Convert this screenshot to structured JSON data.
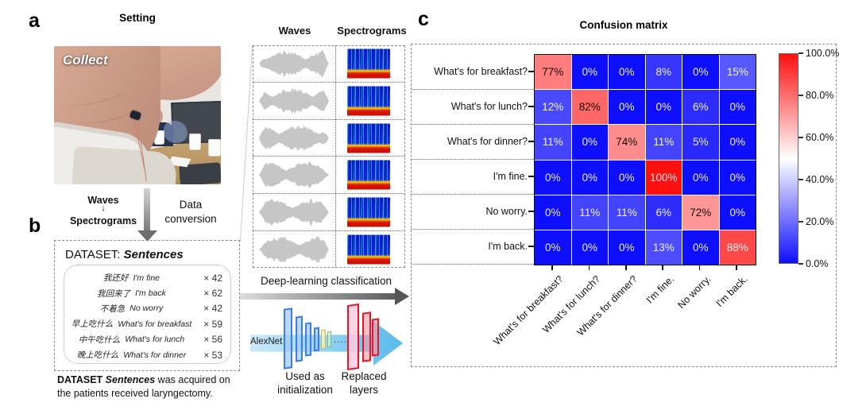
{
  "figure": {
    "panel_a": {
      "label": "a",
      "title": "Setting",
      "photo_overlay": "Collect",
      "conversion": {
        "top": "Waves",
        "arrow": "↓",
        "bottom": "Spectrograms",
        "side_label": "Data conversion"
      }
    },
    "panel_b": {
      "label": "b",
      "dataset_title_prefix": "DATASET:",
      "dataset_title_name": "Sentences",
      "sentences": [
        {
          "zh": "我还好",
          "en": "I'm fine",
          "count": "× 42"
        },
        {
          "zh": "我回来了",
          "en": "I'm back",
          "count": "× 62"
        },
        {
          "zh": "不着急",
          "en": "No worry",
          "count": "× 42"
        },
        {
          "zh": "早上吃什么",
          "en": "What's for breakfast",
          "count": "× 59"
        },
        {
          "zh": "中午吃什么",
          "en": "What's for lunch",
          "count": "× 56"
        },
        {
          "zh": "晚上吃什么",
          "en": "What's for dinner",
          "count": "× 53"
        }
      ],
      "caption_prefix": "DATASET ",
      "caption_bold": "Sentences",
      "caption_rest": " was acquired on the patients received laryngectomy."
    },
    "middle": {
      "header_waves": "Waves",
      "header_spectrograms": "Spectrograms",
      "row_count": 6,
      "classification_label": "Deep-learning classification",
      "alexnet": {
        "name": "AlexNet",
        "dots": "......",
        "label_initialization": "Used as initialization",
        "label_replaced": "Replaced layers"
      }
    },
    "panel_c": {
      "label": "c",
      "title": "Confusion matrix"
    }
  },
  "chart_data": {
    "type": "heatmap",
    "title": "Confusion matrix",
    "categories": [
      "What's for breakfast?",
      "What's for lunch?",
      "What's for dinner?",
      "I'm fine.",
      "No worry.",
      "I'm back."
    ],
    "rows": [
      [
        77,
        0,
        0,
        8,
        0,
        15
      ],
      [
        12,
        82,
        0,
        0,
        6,
        0
      ],
      [
        11,
        0,
        74,
        11,
        5,
        0
      ],
      [
        0,
        0,
        0,
        100,
        0,
        0
      ],
      [
        0,
        11,
        11,
        6,
        72,
        0
      ],
      [
        0,
        0,
        0,
        13,
        0,
        88
      ]
    ],
    "value_suffix": "%",
    "value_range": [
      0,
      100
    ],
    "colormap": "blue-white-red",
    "colorbar_ticks": [
      "100.0%",
      "80.0%",
      "60.0%",
      "40.0%",
      "20.0%",
      "0.0%"
    ],
    "legend_position": "right",
    "grid": false
  }
}
